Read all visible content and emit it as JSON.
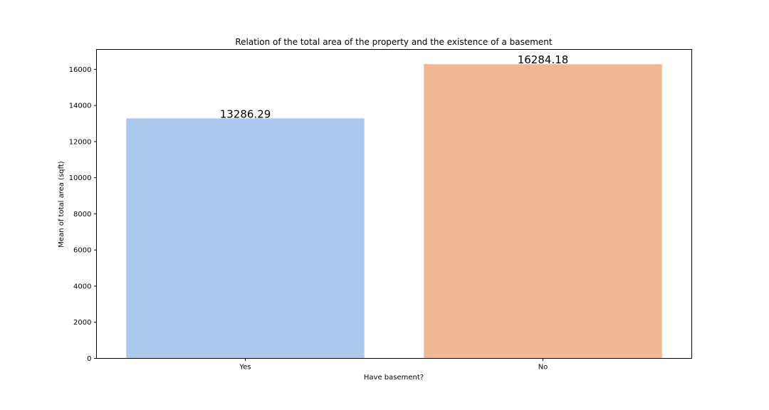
{
  "chart_data": {
    "type": "bar",
    "title": "Relation of the total area of the property and the existence of a basement",
    "xlabel": "Have basement?",
    "ylabel": "Mean of total area (sqft)",
    "categories": [
      "Yes",
      "No"
    ],
    "values": [
      13286.29,
      16284.18
    ],
    "data_labels": [
      "13286.29",
      "16284.18"
    ],
    "colors": [
      "#abc9ec",
      "#f0b793"
    ],
    "ylim": [
      0,
      17100
    ],
    "yticks": [
      0,
      2000,
      4000,
      6000,
      8000,
      10000,
      12000,
      14000,
      16000
    ],
    "grid": false,
    "legend": "none"
  }
}
